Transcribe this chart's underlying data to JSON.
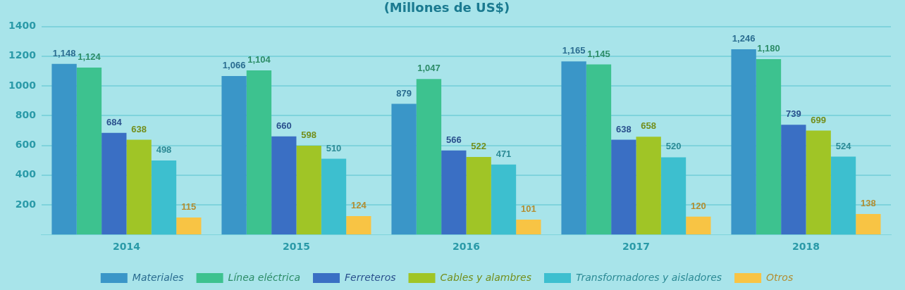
{
  "chart_data": {
    "type": "bar",
    "title": "(Millones de US$)",
    "categories": [
      "2014",
      "2015",
      "2016",
      "2017",
      "2018"
    ],
    "series": [
      {
        "name": "Materiales",
        "color": "#3a96c8",
        "values": [
          1148,
          1066,
          879,
          1165,
          1246
        ],
        "value_labels": [
          "1,148",
          "1,066",
          "879",
          "1,165",
          "1,246"
        ]
      },
      {
        "name": "Línea eléctrica",
        "color": "#3dc28f",
        "values": [
          1124,
          1104,
          1047,
          1145,
          1180
        ],
        "value_labels": [
          "1,124",
          "1,104",
          "1,047",
          "1,145",
          "1,180"
        ]
      },
      {
        "name": "Ferreteros",
        "color": "#3a6fc4",
        "values": [
          684,
          660,
          566,
          638,
          739
        ],
        "value_labels": [
          "684",
          "660",
          "566",
          "638",
          "739"
        ]
      },
      {
        "name": "Cables y alambres",
        "color": "#a0c526",
        "values": [
          638,
          598,
          522,
          658,
          699
        ],
        "value_labels": [
          "638",
          "598",
          "522",
          "658",
          "699"
        ]
      },
      {
        "name": "Transformadores y aisladores",
        "color": "#3dbfcf",
        "values": [
          498,
          510,
          471,
          520,
          524
        ],
        "value_labels": [
          "498",
          "510",
          "471",
          "520",
          "524"
        ]
      },
      {
        "name": "Otros",
        "color": "#f8c444",
        "values": [
          115,
          124,
          101,
          120,
          138
        ],
        "value_labels": [
          "115",
          "124",
          "101",
          "120",
          "138"
        ]
      }
    ],
    "ylim": [
      0,
      1400
    ],
    "yticks": [
      200,
      400,
      600,
      800,
      1000,
      1200,
      1400
    ],
    "grid": "y",
    "legend": "bottom"
  }
}
